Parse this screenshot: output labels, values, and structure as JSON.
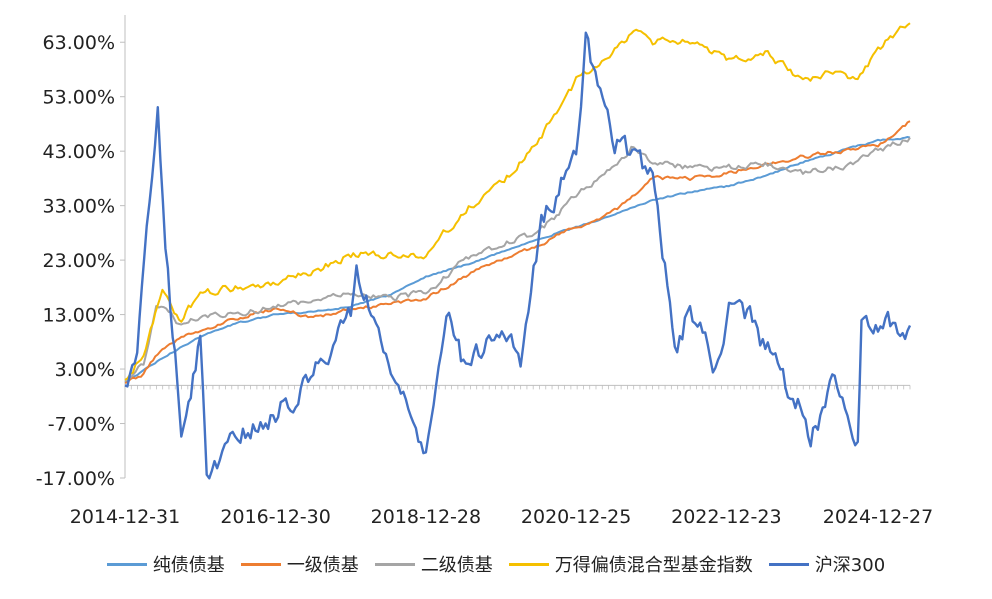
{
  "chart_data": {
    "type": "line",
    "title": "",
    "xlabel": "",
    "ylabel": "",
    "x_tick_labels": [
      "2014-12-31",
      "2016-12-30",
      "2018-12-28",
      "2020-12-25",
      "2022-12-23",
      "2024-12-27"
    ],
    "x_range": [
      "2014-12-31",
      "2025-05-31"
    ],
    "y_tick_labels": [
      "63.00%",
      "53.00%",
      "43.00%",
      "33.00%",
      "23.00%",
      "13.00%",
      "3.00%",
      "-7.00%",
      "-17.00%"
    ],
    "ylim": [
      -17,
      68
    ],
    "grid": false,
    "legend_position": "bottom",
    "series": [
      {
        "name": "纯债债基",
        "color": "#5B9BD5",
        "points": [
          [
            "2014-12-31",
            0.5
          ],
          [
            "2015-06-30",
            5
          ],
          [
            "2015-12-31",
            9
          ],
          [
            "2016-06-30",
            11.5
          ],
          [
            "2016-12-30",
            13
          ],
          [
            "2017-06-30",
            13.5
          ],
          [
            "2017-12-29",
            14.5
          ],
          [
            "2018-06-29",
            16.5
          ],
          [
            "2018-12-28",
            20
          ],
          [
            "2019-06-28",
            22
          ],
          [
            "2019-12-31",
            24.5
          ],
          [
            "2020-06-30",
            27
          ],
          [
            "2020-12-25",
            29
          ],
          [
            "2021-06-30",
            31.5
          ],
          [
            "2021-12-31",
            34
          ],
          [
            "2022-06-30",
            35.5
          ],
          [
            "2022-12-23",
            36.5
          ],
          [
            "2023-06-30",
            38.5
          ],
          [
            "2023-12-29",
            41
          ],
          [
            "2024-06-28",
            43
          ],
          [
            "2024-12-27",
            45
          ],
          [
            "2025-05-31",
            45.5
          ]
        ]
      },
      {
        "name": "一级债基",
        "color": "#ED7D31",
        "points": [
          [
            "2014-12-31",
            0.5
          ],
          [
            "2015-03-31",
            2
          ],
          [
            "2015-06-30",
            7
          ],
          [
            "2015-09-30",
            9
          ],
          [
            "2015-12-31",
            10
          ],
          [
            "2016-06-30",
            12.5
          ],
          [
            "2016-12-30",
            14
          ],
          [
            "2017-06-30",
            12.5
          ],
          [
            "2017-12-29",
            14
          ],
          [
            "2018-06-29",
            15
          ],
          [
            "2018-12-28",
            16
          ],
          [
            "2019-06-28",
            20
          ],
          [
            "2019-12-31",
            23
          ],
          [
            "2020-06-30",
            26
          ],
          [
            "2020-12-25",
            29
          ],
          [
            "2021-06-30",
            32
          ],
          [
            "2021-12-31",
            38
          ],
          [
            "2022-06-30",
            38
          ],
          [
            "2022-12-23",
            39
          ],
          [
            "2023-06-30",
            40.5
          ],
          [
            "2023-12-29",
            42
          ],
          [
            "2024-06-28",
            43
          ],
          [
            "2024-12-27",
            44
          ],
          [
            "2025-05-31",
            48.5
          ]
        ]
      },
      {
        "name": "二级债基",
        "color": "#A5A5A5",
        "points": [
          [
            "2014-12-31",
            1
          ],
          [
            "2015-03-31",
            4
          ],
          [
            "2015-05-31",
            15
          ],
          [
            "2015-09-30",
            11
          ],
          [
            "2015-12-31",
            13
          ],
          [
            "2016-06-30",
            13.5
          ],
          [
            "2016-12-30",
            14.5
          ],
          [
            "2017-06-30",
            15
          ],
          [
            "2017-12-29",
            17
          ],
          [
            "2018-06-29",
            16
          ],
          [
            "2018-12-28",
            17
          ],
          [
            "2019-06-28",
            23
          ],
          [
            "2019-12-31",
            26
          ],
          [
            "2020-06-30",
            28
          ],
          [
            "2020-12-25",
            35
          ],
          [
            "2021-06-30",
            40
          ],
          [
            "2021-09-30",
            44
          ],
          [
            "2021-12-31",
            41
          ],
          [
            "2022-06-30",
            40
          ],
          [
            "2022-12-23",
            40
          ],
          [
            "2023-06-30",
            40.5
          ],
          [
            "2023-12-29",
            39
          ],
          [
            "2024-06-28",
            40
          ],
          [
            "2024-12-27",
            43
          ],
          [
            "2025-05-31",
            45.5
          ]
        ]
      },
      {
        "name": "万得偏债混合型基金指数",
        "color": "#F5C000",
        "points": [
          [
            "2014-12-31",
            1
          ],
          [
            "2015-03-31",
            6
          ],
          [
            "2015-06-30",
            17
          ],
          [
            "2015-09-30",
            12
          ],
          [
            "2015-12-31",
            17
          ],
          [
            "2016-06-30",
            18
          ],
          [
            "2016-12-30",
            19
          ],
          [
            "2017-06-30",
            21
          ],
          [
            "2017-12-29",
            24
          ],
          [
            "2018-06-29",
            24
          ],
          [
            "2018-12-28",
            24
          ],
          [
            "2019-06-28",
            32
          ],
          [
            "2019-12-31",
            37
          ],
          [
            "2020-06-30",
            45
          ],
          [
            "2020-12-25",
            56
          ],
          [
            "2021-06-30",
            62
          ],
          [
            "2021-09-30",
            65
          ],
          [
            "2021-12-31",
            63
          ],
          [
            "2022-06-30",
            63
          ],
          [
            "2022-12-23",
            60
          ],
          [
            "2023-06-30",
            61
          ],
          [
            "2023-12-29",
            56
          ],
          [
            "2024-06-28",
            58
          ],
          [
            "2024-09-20",
            56
          ],
          [
            "2024-12-27",
            62
          ],
          [
            "2025-05-31",
            66.5
          ]
        ]
      },
      {
        "name": "沪深300",
        "color": "#4472C4",
        "points": [
          [
            "2014-12-31",
            0
          ],
          [
            "2015-02-28",
            6
          ],
          [
            "2015-04-15",
            30
          ],
          [
            "2015-06-08",
            50
          ],
          [
            "2015-07-15",
            25
          ],
          [
            "2015-08-31",
            5
          ],
          [
            "2015-09-30",
            -10
          ],
          [
            "2015-12-31",
            8
          ],
          [
            "2016-01-31",
            -15
          ],
          [
            "2016-06-30",
            -10
          ],
          [
            "2016-12-30",
            -5
          ],
          [
            "2017-06-30",
            2
          ],
          [
            "2017-12-29",
            14
          ],
          [
            "2018-01-26",
            22
          ],
          [
            "2018-06-29",
            5
          ],
          [
            "2018-12-28",
            -14
          ],
          [
            "2019-04-19",
            13
          ],
          [
            "2019-06-28",
            4
          ],
          [
            "2019-12-31",
            10
          ],
          [
            "2020-03-31",
            5
          ],
          [
            "2020-07-10",
            30
          ],
          [
            "2020-12-25",
            42
          ],
          [
            "2021-02-10",
            63
          ],
          [
            "2021-06-30",
            45
          ],
          [
            "2021-12-31",
            38
          ],
          [
            "2022-04-29",
            5
          ],
          [
            "2022-06-30",
            15
          ],
          [
            "2022-10-31",
            2
          ],
          [
            "2022-12-23",
            13
          ],
          [
            "2023-01-31",
            17
          ],
          [
            "2023-06-30",
            7
          ],
          [
            "2023-12-29",
            -5
          ],
          [
            "2024-02-05",
            -10
          ],
          [
            "2024-05-31",
            0
          ],
          [
            "2024-09-20",
            -11
          ],
          [
            "2024-10-08",
            13
          ],
          [
            "2024-12-27",
            11
          ],
          [
            "2025-05-31",
            11
          ]
        ]
      }
    ]
  }
}
